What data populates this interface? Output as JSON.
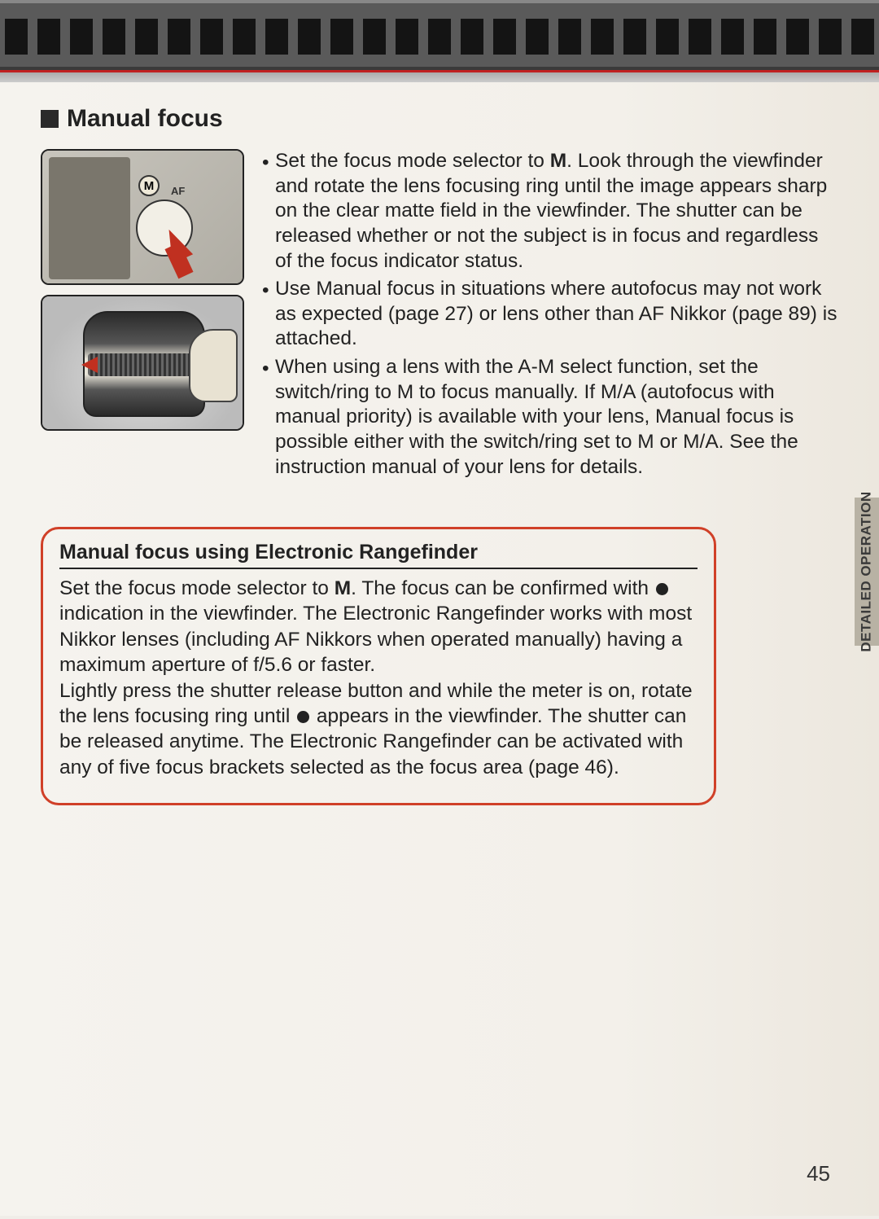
{
  "page_number": "45",
  "side_tab": "DETAILED OPERATION",
  "heading": "Manual focus",
  "film_strip": {
    "hole_count": 27,
    "strip_bg": "#5a5a5a",
    "hole_color": "#141414",
    "accent_line": "#c02020"
  },
  "illustrations": [
    {
      "alt": "Focus mode selector dial with M circled and red arrow",
      "m_label": "M",
      "af_label": "AF"
    },
    {
      "alt": "Hand rotating lens focusing ring with red double arrow"
    }
  ],
  "bullets": [
    {
      "pre": "Set the focus mode selector to ",
      "bold": "M",
      "post": ". Look through the viewfinder and rotate the lens focusing ring until the image appears sharp on the clear matte field in the viewfinder. The shutter can be released whether or not the subject is in focus and regardless of the focus indicator status."
    },
    {
      "pre": "Use Manual focus in situations where autofocus may not work as expected (page 27) or lens other than AF Nikkor (page 89) is attached.",
      "bold": "",
      "post": ""
    },
    {
      "pre": "When using a lens with the A-M select function, set the switch/ring to M to focus manually. If M/A (autofocus with manual priority) is available with your lens, Manual focus is possible either with the switch/ring set to M or M/A. See the instruction manual of your lens for details.",
      "bold": "",
      "post": ""
    }
  ],
  "callout": {
    "title": "Manual focus using Electronic Rangefinder",
    "border_color": "#d04028",
    "p1_pre": "Set the focus mode selector to ",
    "p1_bold": "M",
    "p1_mid": ". The focus can be confirmed with ",
    "p1_post": " indication in the viewfinder. The Electronic Rangefinder works with most Nikkor lenses (including AF Nikkors when operated manually) having a maximum aperture of f/5.6 or faster.",
    "p2_pre": "Lightly press the shutter release button and while the meter is on, rotate the lens focusing ring until ",
    "p2_post": " appears in the viewfinder. The shutter can be released anytime. The Electronic Rangefinder can be activated with any of five focus brackets selected as the focus area (page 46)."
  }
}
